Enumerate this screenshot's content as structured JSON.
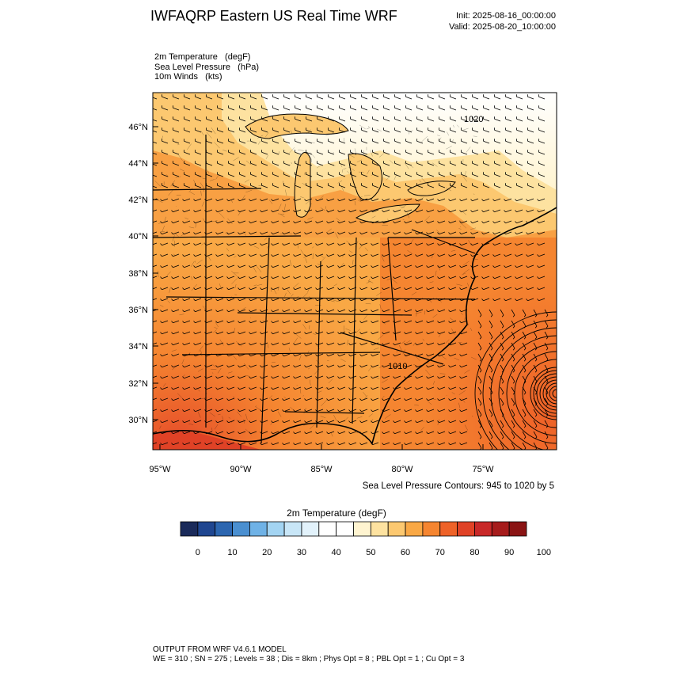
{
  "header": {
    "title": "IWFAQRP Eastern US Real Time WRF",
    "init": "Init: 2025-08-16_00:00:00",
    "valid": "Valid: 2025-08-20_10:00:00"
  },
  "fields": [
    "2m Temperature   (degF)",
    "Sea Level Pressure   (hPa)",
    "10m Winds   (kts)"
  ],
  "map": {
    "lat_labels": [
      "46°N",
      "44°N",
      "42°N",
      "40°N",
      "38°N",
      "36°N",
      "34°N",
      "32°N",
      "30°N"
    ],
    "lon_labels": [
      "95°W",
      "90°W",
      "85°W",
      "80°W",
      "75°W"
    ],
    "contour_labels": [
      "1020",
      "1010"
    ],
    "contour_note": "Sea Level Pressure Contours: 945 to 1020 by 5"
  },
  "colorbar": {
    "title": "2m Temperature  (degF)",
    "colors": [
      "#1a2a5a",
      "#1f4690",
      "#2c66b0",
      "#4a8fd0",
      "#6fb2e6",
      "#a3d4f2",
      "#c8e6f7",
      "#e2f2fb",
      "#ffffff",
      "#ffffff",
      "#fff4d0",
      "#fde2a0",
      "#fcc870",
      "#f9a845",
      "#f58530",
      "#ee6228",
      "#e04226",
      "#c82828",
      "#a61c1c",
      "#8a1414"
    ],
    "tick_labels": [
      "0",
      "10",
      "20",
      "30",
      "40",
      "50",
      "60",
      "70",
      "80",
      "90",
      "100"
    ]
  },
  "model_info": {
    "line1": "OUTPUT FROM WRF V4.6.1 MODEL",
    "line2": "WE = 310 ; SN = 275 ; Levels = 38 ; Dis = 8km ; Phys Opt = 8 ; PBL Opt = 1 ; Cu Opt = 3"
  }
}
